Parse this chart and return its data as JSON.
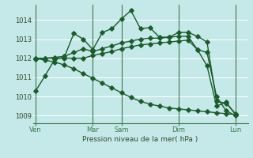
{
  "bg_color": "#c5e8e8",
  "grid_color": "#b0d8d8",
  "line_color": "#1a5c2a",
  "xlabel": "Pression niveau de la mer( hPa )",
  "ylim": [
    1008.6,
    1014.8
  ],
  "xlim": [
    -0.3,
    22.3
  ],
  "ytick_values": [
    1009,
    1010,
    1011,
    1012,
    1013,
    1014
  ],
  "xtick_labels_pos": [
    0,
    6,
    9,
    15,
    21
  ],
  "xtick_labels_text": [
    "Ven",
    "Mar",
    "Sam",
    "Dim",
    "Lun"
  ],
  "vline_positions": [
    0,
    6,
    9,
    15,
    21
  ],
  "lines": [
    {
      "x": [
        0,
        1,
        2,
        3,
        4,
        5,
        6,
        7,
        8,
        9,
        10,
        11,
        12,
        13,
        14,
        15,
        16,
        17,
        18,
        19,
        20,
        21
      ],
      "y": [
        1010.3,
        1011.1,
        1011.95,
        1012.05,
        1013.3,
        1013.0,
        1012.45,
        1013.35,
        1013.55,
        1014.05,
        1014.5,
        1013.55,
        1013.6,
        1013.1,
        1013.1,
        1013.35,
        1013.35,
        1013.15,
        1012.85,
        1009.75,
        1009.65,
        1009.1
      ]
    },
    {
      "x": [
        0,
        1,
        2,
        3,
        4,
        5,
        6,
        7,
        8,
        9,
        10,
        11,
        12,
        13,
        14,
        15,
        16,
        17,
        18,
        19,
        20,
        21
      ],
      "y": [
        1011.95,
        1012.0,
        1012.05,
        1012.1,
        1012.3,
        1012.5,
        1012.35,
        1012.5,
        1012.65,
        1012.8,
        1012.9,
        1013.0,
        1013.05,
        1013.05,
        1013.1,
        1013.15,
        1013.15,
        1012.45,
        1011.6,
        1009.5,
        1009.7,
        1009.05
      ]
    },
    {
      "x": [
        0,
        1,
        2,
        3,
        4,
        5,
        6,
        7,
        8,
        9,
        10,
        11,
        12,
        13,
        14,
        15,
        16,
        17,
        18,
        19,
        20,
        21
      ],
      "y": [
        1012.0,
        1012.0,
        1012.0,
        1012.0,
        1012.0,
        1012.0,
        1012.15,
        1012.25,
        1012.35,
        1012.5,
        1012.6,
        1012.7,
        1012.75,
        1012.8,
        1012.85,
        1012.9,
        1012.95,
        1012.45,
        1012.3,
        1010.0,
        1009.25,
        1009.0
      ]
    },
    {
      "x": [
        0,
        1,
        2,
        3,
        4,
        5,
        6,
        7,
        8,
        9,
        10,
        11,
        12,
        13,
        14,
        15,
        16,
        17,
        18,
        19,
        20,
        21
      ],
      "y": [
        1012.0,
        1011.9,
        1011.8,
        1011.65,
        1011.45,
        1011.2,
        1010.95,
        1010.7,
        1010.45,
        1010.2,
        1009.95,
        1009.75,
        1009.6,
        1009.5,
        1009.4,
        1009.35,
        1009.3,
        1009.25,
        1009.2,
        1009.15,
        1009.1,
        1009.05
      ]
    }
  ],
  "marker": "D",
  "markersize": 2.8,
  "lw": 1.0
}
